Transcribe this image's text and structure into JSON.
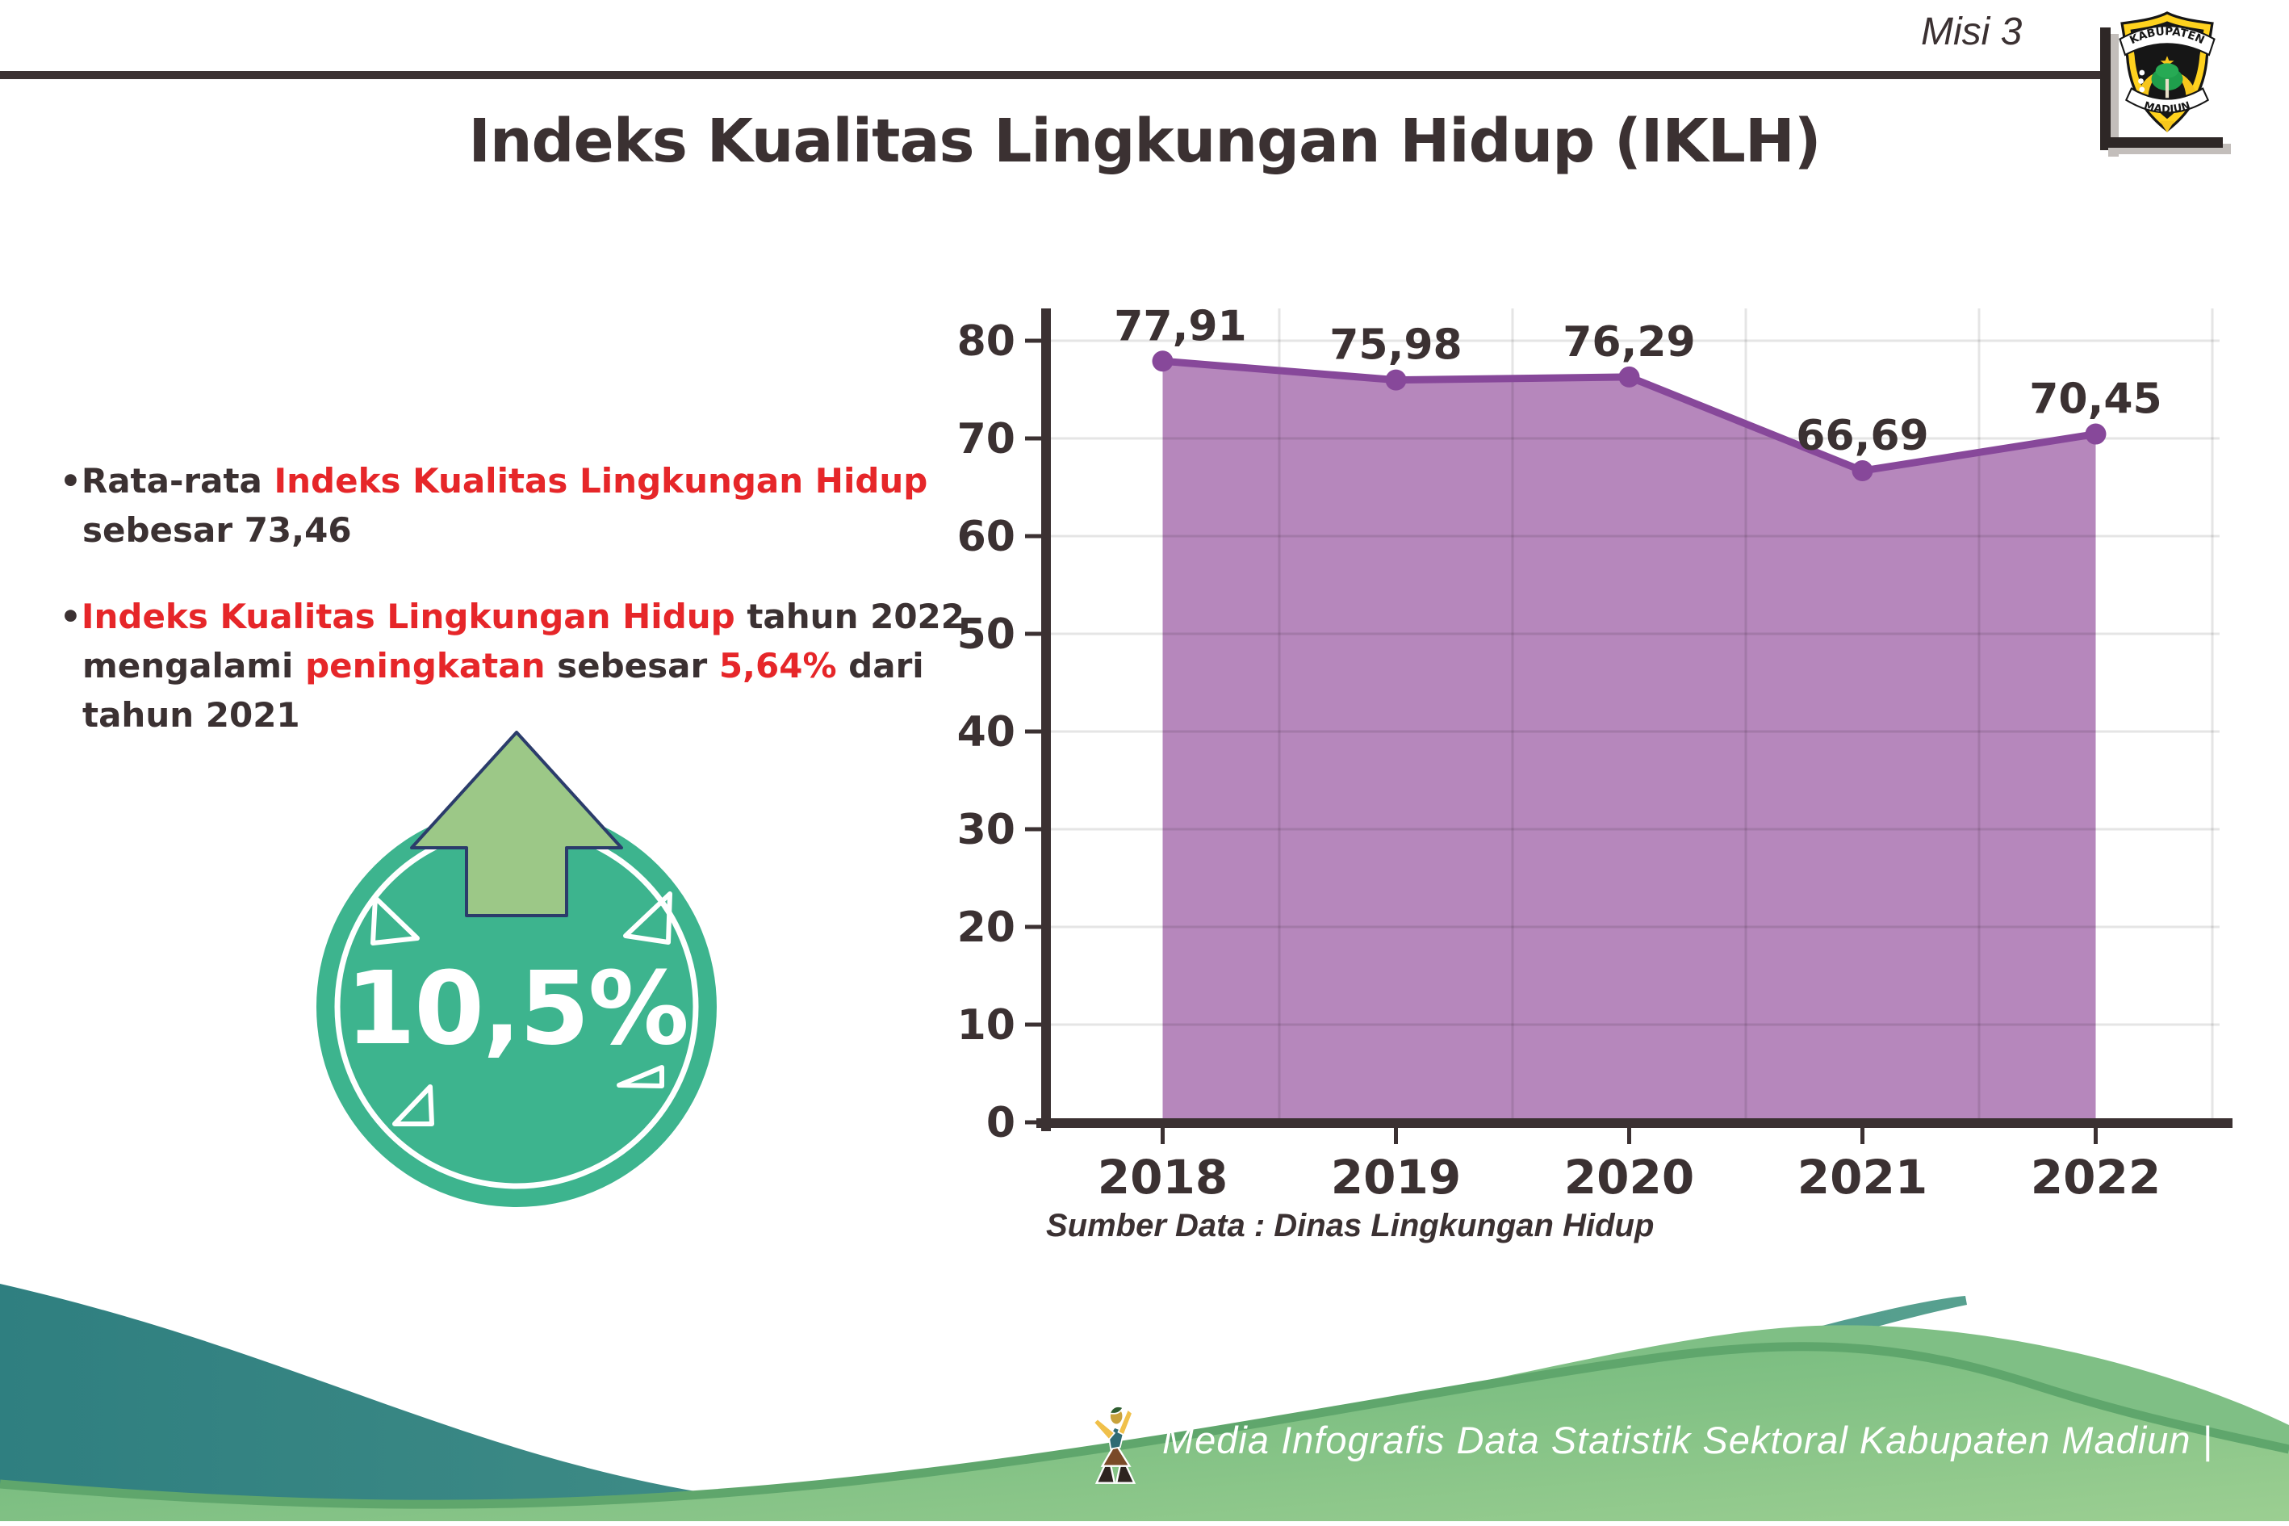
{
  "header": {
    "misi_label": "Misi 3",
    "logo": {
      "top_text": "KABUPATEN",
      "bottom_text": "MADIUN"
    }
  },
  "title": "Indeks Kualitas Lingkungan Hidup (IKLH)",
  "bullet_glyph": "•",
  "insights": [
    {
      "segments": [
        {
          "text": "Rata-rata ",
          "color": "dark"
        },
        {
          "text": "Indeks Kualitas Lingkungan Hidup",
          "color": "red"
        },
        {
          "text": " sebesar 73,46",
          "color": "dark"
        }
      ]
    },
    {
      "segments": [
        {
          "text": "Indeks Kualitas Lingkungan Hidup",
          "color": "red"
        },
        {
          "text": " tahun 2022 mengalami ",
          "color": "dark"
        },
        {
          "text": "peningkatan",
          "color": "red"
        },
        {
          "text": " sebesar ",
          "color": "dark"
        },
        {
          "text": "5,64%",
          "color": "red"
        },
        {
          "text": " dari tahun 2021",
          "color": "dark"
        }
      ]
    }
  ],
  "badge": {
    "value": "10,5%",
    "direction": "up"
  },
  "chart_data": {
    "type": "area",
    "categories": [
      "2018",
      "2019",
      "2020",
      "2021",
      "2022"
    ],
    "values": [
      77.91,
      75.98,
      76.29,
      66.69,
      70.45
    ],
    "value_labels": [
      "77,91",
      "75,98",
      "76,29",
      "66,69",
      "70,45"
    ],
    "title": "",
    "xlabel": "",
    "ylabel": "",
    "ylim": [
      0,
      85
    ],
    "yticks": [
      0,
      10,
      20,
      30,
      40,
      50,
      60,
      70,
      80
    ],
    "grid": true,
    "legend": false,
    "area_color": "#b687bc",
    "line_color": "#87489a",
    "marker_color": "#87489a"
  },
  "source_note": "Sumber Data : Dinas Lingkungan Hidup",
  "footer": {
    "text": "Media Infografis Data Statistik Sektoral Kabupaten Madiun |"
  },
  "colors": {
    "dark": "#3b3132",
    "red": "#e62629",
    "badge_teal": "#3db48e",
    "arrow_green": "#9cc887",
    "arrow_outline": "#2b3c6b",
    "wave_teal": "#3a8a87",
    "wave_green": "#7fbd82"
  }
}
